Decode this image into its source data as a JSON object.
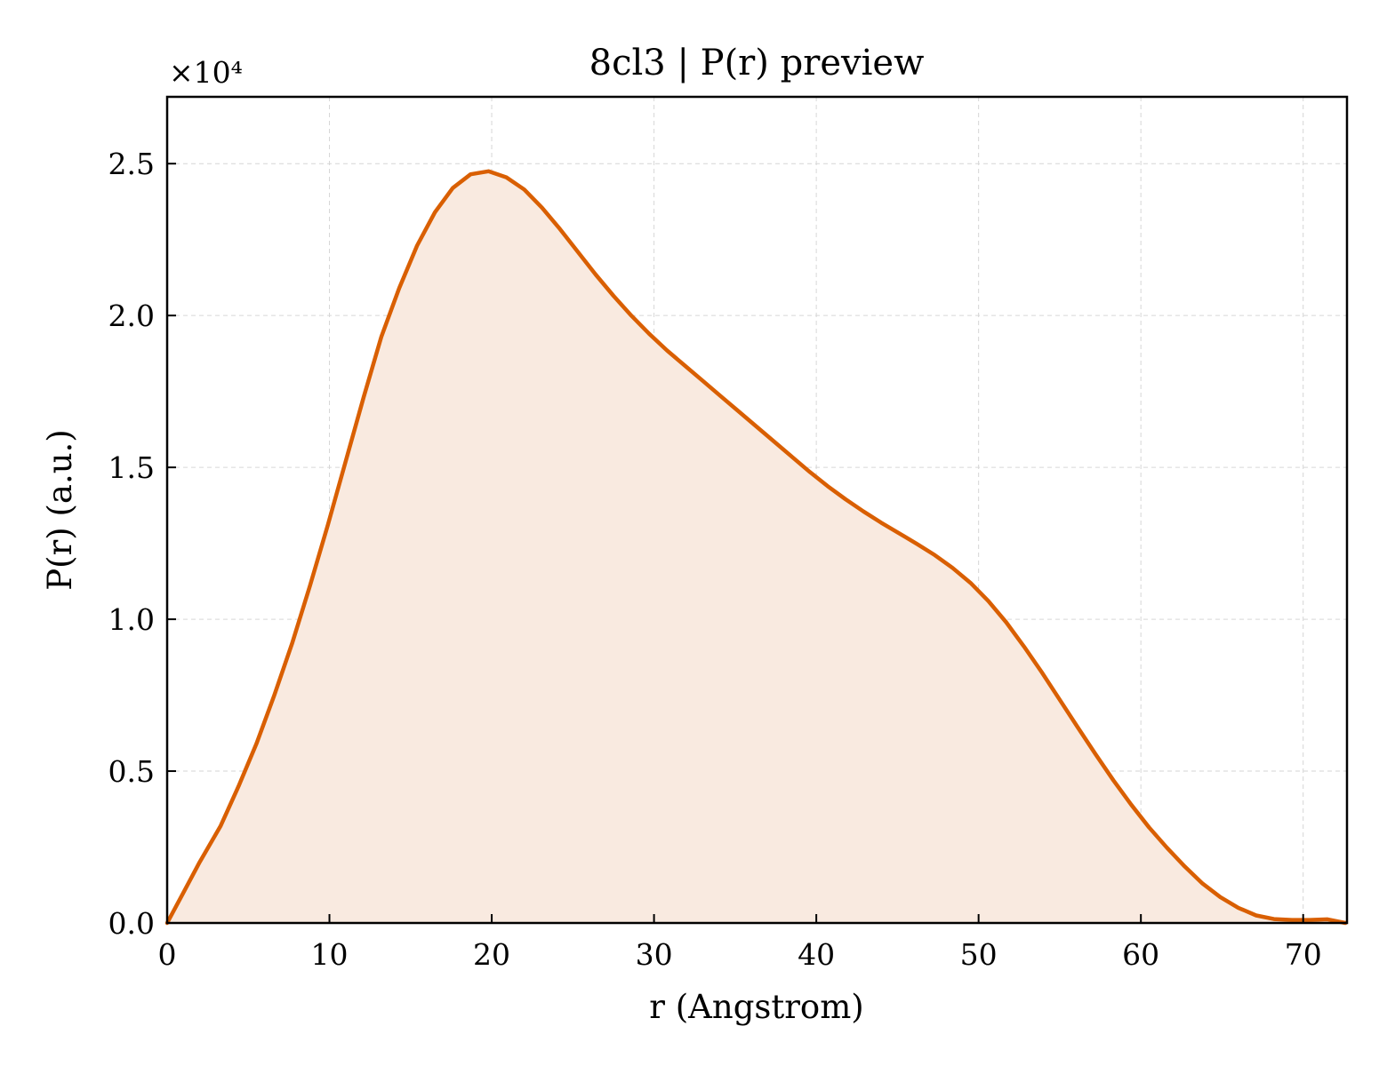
{
  "chart_data": {
    "type": "area",
    "title": "8cl3 | P(r) preview",
    "xlabel": "r (Angstrom)",
    "ylabel": "P(r) (a.u.)",
    "y_multiplier_label": "×10⁴",
    "y_scale": 10000,
    "xlim": [
      0,
      72.7
    ],
    "ylim": [
      0,
      27200
    ],
    "x_ticks": [
      0,
      10,
      20,
      30,
      40,
      50,
      60,
      70
    ],
    "x_tick_labels": [
      "0",
      "10",
      "20",
      "30",
      "40",
      "50",
      "60",
      "70"
    ],
    "y_ticks": [
      0,
      5000,
      10000,
      15000,
      20000,
      25000
    ],
    "y_tick_labels": [
      "0.0",
      "0.5",
      "1.0",
      "1.5",
      "2.0",
      "2.5"
    ],
    "grid": true,
    "line_color": "#d95f02",
    "fill_color": "#f9eae0",
    "series": [
      {
        "x": [
          0,
          1,
          2,
          3.3,
          4.4,
          5.5,
          6.6,
          7.7,
          8.8,
          9.9,
          11,
          12.1,
          13.2,
          14.3,
          15.4,
          16.5,
          17.6,
          18.7,
          19.8,
          20.9,
          22,
          23.1,
          24.2,
          25.3,
          26.4,
          27.5,
          28.6,
          29.7,
          30.8,
          31.9,
          33,
          34.1,
          35.2,
          36.3,
          37.4,
          38.5,
          39.6,
          40.7,
          41.8,
          42.9,
          44,
          45.1,
          46.2,
          47.3,
          48.4,
          49.5,
          50.6,
          51.7,
          52.8,
          53.9,
          55,
          56.1,
          57.2,
          58.3,
          59.4,
          60.5,
          61.6,
          62.7,
          63.8,
          64.9,
          66,
          67.1,
          68.2,
          69.3,
          70.4,
          71.5,
          72.6
        ],
        "y": [
          0,
          1000,
          2000,
          3200,
          4500,
          5900,
          7500,
          9200,
          11100,
          13100,
          15200,
          17300,
          19300,
          20900,
          22300,
          23400,
          24200,
          24650,
          24750,
          24550,
          24150,
          23550,
          22850,
          22100,
          21350,
          20650,
          20000,
          19400,
          18850,
          18350,
          17850,
          17350,
          16850,
          16350,
          15850,
          15350,
          14850,
          14380,
          13950,
          13550,
          13180,
          12830,
          12480,
          12110,
          11690,
          11200,
          10600,
          9900,
          9100,
          8250,
          7350,
          6450,
          5560,
          4700,
          3900,
          3150,
          2480,
          1860,
          1300,
          850,
          500,
          250,
          130,
          100,
          100,
          120,
          0
        ]
      }
    ]
  }
}
